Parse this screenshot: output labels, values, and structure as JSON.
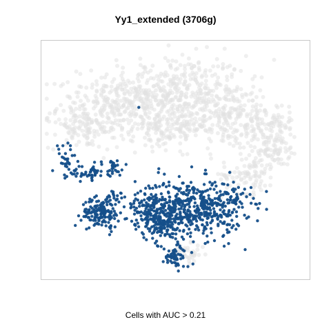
{
  "chart_data": {
    "type": "scatter",
    "title": "Yy1_extended (3706g)",
    "caption": "Cells with AUC > 0.21",
    "xlabel": "",
    "ylabel": "",
    "xlim": [
      0,
      100
    ],
    "ylim": [
      0,
      100
    ],
    "axes_visible": false,
    "grid": false,
    "colors": {
      "low": "#e1e1e1",
      "high": "#154f8a",
      "frame": "#c8c8c8"
    },
    "series": [
      {
        "color": "#e1e1e1",
        "clusters": [
          {
            "x": 49,
            "y": 78,
            "sx": 14,
            "sy": 8,
            "n": 420
          },
          {
            "x": 28,
            "y": 72,
            "sx": 11,
            "sy": 6,
            "n": 260
          },
          {
            "x": 15,
            "y": 63,
            "sx": 6,
            "sy": 4,
            "n": 90
          },
          {
            "x": 70,
            "y": 68,
            "sx": 10,
            "sy": 7,
            "n": 240
          },
          {
            "x": 86,
            "y": 58,
            "sx": 5,
            "sy": 6,
            "n": 140
          },
          {
            "x": 77,
            "y": 44,
            "sx": 5,
            "sy": 4,
            "n": 90
          },
          {
            "x": 47,
            "y": 63,
            "sx": 7,
            "sy": 4,
            "n": 120
          },
          {
            "x": 55,
            "y": 11,
            "sx": 3,
            "sy": 2,
            "n": 35
          }
        ]
      },
      {
        "color": "#154f8a",
        "clusters": [
          {
            "x": 55,
            "y": 30,
            "sx": 10,
            "sy": 6,
            "n": 560
          },
          {
            "x": 41,
            "y": 29,
            "sx": 4,
            "sy": 4,
            "n": 90
          },
          {
            "x": 45,
            "y": 22,
            "sx": 4,
            "sy": 2.5,
            "n": 70
          },
          {
            "x": 22,
            "y": 28,
            "sx": 3.5,
            "sy": 3,
            "n": 150
          },
          {
            "x": 28,
            "y": 35,
            "sx": 2,
            "sy": 1.5,
            "n": 20
          },
          {
            "x": 17,
            "y": 45,
            "sx": 4,
            "sy": 1.5,
            "n": 60
          },
          {
            "x": 9,
            "y": 50,
            "sx": 2,
            "sy": 4,
            "n": 25
          },
          {
            "x": 27,
            "y": 47,
            "sx": 2,
            "sy": 2,
            "n": 22
          },
          {
            "x": 50,
            "y": 10,
            "sx": 2.5,
            "sy": 2.5,
            "n": 60
          },
          {
            "x": 72,
            "y": 33,
            "sx": 3,
            "sy": 3,
            "n": 30
          },
          {
            "x": 36,
            "y": 72,
            "sx": 0.3,
            "sy": 0.3,
            "n": 1
          }
        ]
      }
    ]
  }
}
